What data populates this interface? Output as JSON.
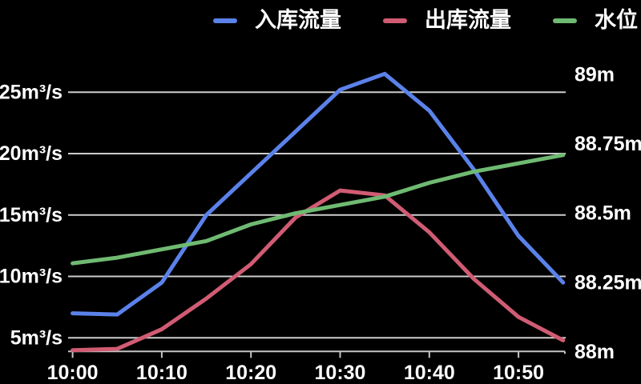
{
  "colors": {
    "background": "#000000",
    "grid": "#cdcdcd",
    "axis": "#c4c4c4",
    "text": "#ffffff",
    "inflow": "#5b82ea",
    "outflow": "#d05c73",
    "level": "#6fba72"
  },
  "legend": {
    "items": [
      {
        "key": "inflow",
        "label": "入库流量",
        "color": "#5b82ea"
      },
      {
        "key": "outflow",
        "label": "出库流量",
        "color": "#d05c73"
      },
      {
        "key": "level",
        "label": "水位",
        "color": "#6fba72"
      }
    ]
  },
  "chart_data": {
    "type": "line",
    "title": "",
    "grid": "horizontal-only",
    "legend_position": "top-right",
    "x": [
      "10:00",
      "10:05",
      "10:10",
      "10:15",
      "10:20",
      "10:25",
      "10:30",
      "10:35",
      "10:40",
      "10:45",
      "10:50",
      "10:55"
    ],
    "x_axis": {
      "tick_labels": [
        "10:00",
        "10:10",
        "10:20",
        "10:30",
        "10:40",
        "10:50"
      ],
      "tick_indices": [
        0,
        2,
        4,
        6,
        8,
        10
      ]
    },
    "y_left_axis": {
      "unit": "m³/s",
      "ticks": [
        {
          "label": "5m³/s",
          "value": 5
        },
        {
          "label": "10m³/s",
          "value": 10
        },
        {
          "label": "15m³/s",
          "value": 15
        },
        {
          "label": "20m³/s",
          "value": 20
        },
        {
          "label": "25m³/s",
          "value": 25
        }
      ]
    },
    "y_right_axis": {
      "unit": "m",
      "ticks": [
        {
          "label": "88m",
          "value": 88
        },
        {
          "label": "88.25m",
          "value": 88.25
        },
        {
          "label": "88.5m",
          "value": 88.5
        },
        {
          "label": "88.75m",
          "value": 88.75
        },
        {
          "label": "89m",
          "value": 89
        }
      ]
    },
    "series": [
      {
        "name": "入库流量",
        "key": "inflow",
        "axis": "left",
        "color": "#5b82ea",
        "values": [
          7,
          6.9,
          9.5,
          15,
          18.4,
          21.8,
          25.2,
          26.5,
          23.5,
          18.7,
          13.3,
          9.5
        ]
      },
      {
        "name": "出库流量",
        "key": "outflow",
        "axis": "left",
        "color": "#d05c73",
        "values": [
          4,
          4.1,
          5.7,
          8.2,
          11,
          14.8,
          17,
          16.6,
          13.6,
          9.8,
          6.7,
          4.8
        ]
      },
      {
        "name": "水位",
        "key": "level",
        "axis": "right",
        "color": "#6fba72",
        "values": [
          88.32,
          88.34,
          88.37,
          88.4,
          88.46,
          88.5,
          88.53,
          88.56,
          88.61,
          88.65,
          88.68,
          88.71
        ]
      }
    ]
  }
}
